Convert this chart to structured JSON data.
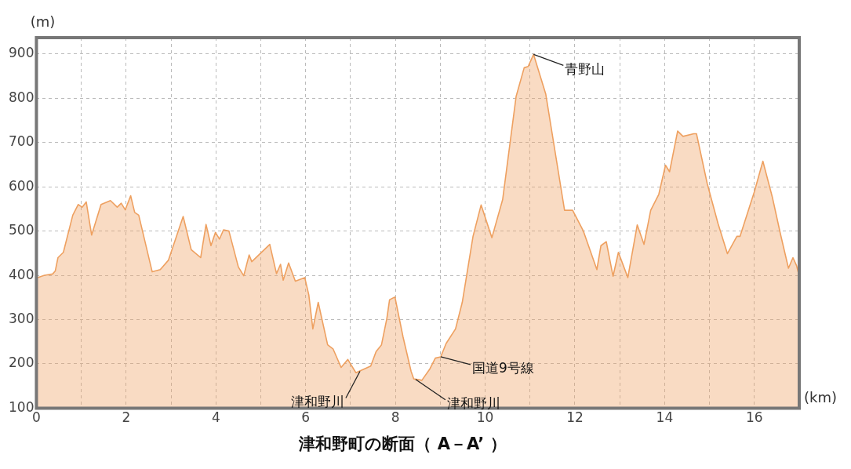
{
  "chart_data": {
    "type": "area",
    "title": "津和野町の断面（ A－A’ ）",
    "xlabel": "(km)",
    "ylabel": "(m)",
    "x": [
      0,
      0.18,
      0.36,
      0.42,
      0.48,
      0.6,
      0.81,
      0.93,
      1.02,
      1.11,
      1.23,
      1.44,
      1.65,
      1.8,
      1.89,
      1.98,
      2.1,
      2.19,
      2.28,
      2.58,
      2.76,
      2.94,
      3.12,
      3.27,
      3.45,
      3.66,
      3.78,
      3.89,
      3.99,
      4.08,
      4.17,
      4.29,
      4.5,
      4.62,
      4.74,
      4.8,
      5.2,
      5.35,
      5.44,
      5.5,
      5.62,
      5.77,
      5.98,
      6.07,
      6.16,
      6.28,
      6.49,
      6.61,
      6.79,
      6.94,
      7.12,
      7.45,
      7.57,
      7.69,
      7.81,
      7.87,
      7.99,
      8.17,
      8.35,
      8.41,
      8.59,
      8.77,
      8.89,
      9.01,
      9.13,
      9.34,
      9.49,
      9.73,
      9.91,
      10.15,
      10.39,
      10.69,
      10.87,
      10.96,
      11.08,
      11.35,
      11.77,
      11.95,
      12.19,
      12.49,
      12.58,
      12.7,
      12.85,
      12.97,
      13.18,
      13.39,
      13.54,
      13.69,
      13.87,
      14.02,
      14.11,
      14.29,
      14.41,
      14.65,
      14.71,
      14.95,
      15.19,
      15.4,
      15.61,
      15.68,
      16.0,
      16.19,
      16.4,
      16.58,
      16.76,
      16.86,
      16.94,
      17.0
    ],
    "series": [
      {
        "color": "#eea060",
        "values": [
          394,
          400,
          403,
          410,
          440,
          452,
          536,
          560,
          554,
          566,
          491,
          560,
          569,
          554,
          563,
          548,
          580,
          542,
          536,
          408,
          413,
          434,
          488,
          533,
          458,
          440,
          515,
          467,
          497,
          482,
          503,
          500,
          419,
          399,
          446,
          431,
          470,
          404,
          425,
          389,
          428,
          387,
          395,
          356,
          279,
          339,
          243,
          234,
          192,
          210,
          180,
          195,
          228,
          243,
          303,
          345,
          351,
          261,
          183,
          166,
          163,
          189,
          213,
          216,
          246,
          279,
          339,
          488,
          559,
          485,
          571,
          804,
          869,
          872,
          899,
          810,
          547,
          547,
          500,
          413,
          467,
          476,
          398,
          452,
          395,
          514,
          470,
          547,
          583,
          649,
          634,
          726,
          714,
          720,
          720,
          607,
          517,
          449,
          488,
          488,
          589,
          658,
          577,
          494,
          416,
          440,
          422,
          398
        ]
      }
    ],
    "xlim": [
      0,
      17
    ],
    "ylim": [
      100,
      937
    ],
    "xticks": [
      0,
      {
        "value": 1,
        "label": null
      },
      2,
      {
        "value": 3,
        "label": null
      },
      4,
      {
        "value": 5,
        "label": null
      },
      6,
      {
        "value": 7,
        "label": null
      },
      8,
      {
        "value": 9,
        "label": null
      },
      10,
      {
        "value": 11,
        "label": null
      },
      12,
      {
        "value": 13,
        "label": null
      },
      14,
      {
        "value": 15,
        "label": null
      },
      16
    ],
    "yticks": [
      100,
      200,
      300,
      400,
      500,
      600,
      700,
      800,
      900
    ],
    "grid": true,
    "marker": "none",
    "line_style": "solid",
    "annotations": [
      {
        "text": "青野山",
        "x": 11.08,
        "y": 899
      },
      {
        "text": "国道9号線",
        "x": 9.01,
        "y": 216
      },
      {
        "text": "津和野川",
        "x": 7.21,
        "y": 183
      },
      {
        "text": "津和野川",
        "x": 8.45,
        "y": 165
      }
    ]
  }
}
